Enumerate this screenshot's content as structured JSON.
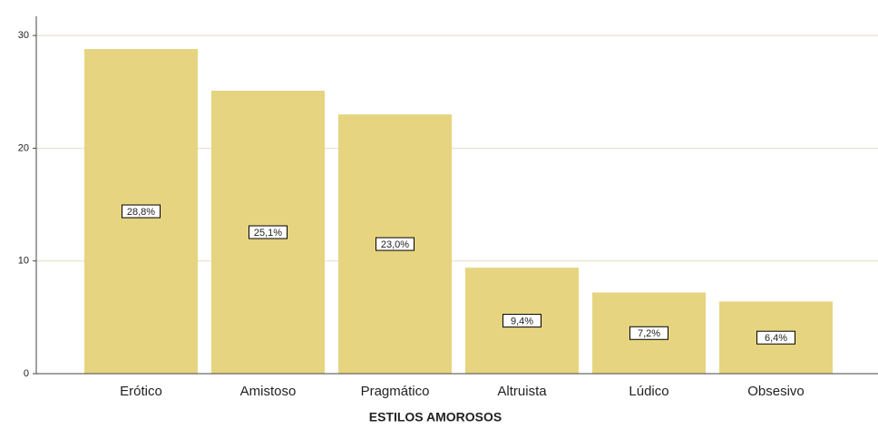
{
  "chart_data": {
    "type": "bar",
    "x_label": "ESTILOS AMOROSOS",
    "categories": [
      "Erótico",
      "Amistoso",
      "Pragmático",
      "Altruista",
      "Lúdico",
      "Obsesivo"
    ],
    "values": [
      28.8,
      25.1,
      23.0,
      9.4,
      7.2,
      6.4
    ],
    "value_labels": [
      "28,8%",
      "25,1%",
      "23,0%",
      "9,4%",
      "7,2%",
      "6,4%"
    ],
    "color": "#e6d480",
    "ylim": [
      0,
      31.7
    ],
    "yticks": [
      0,
      10,
      20,
      30
    ],
    "grid": true
  }
}
